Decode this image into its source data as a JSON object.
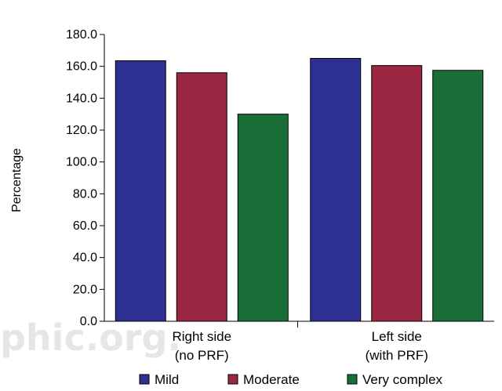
{
  "watermark": "phic.org.",
  "chart_data": {
    "type": "bar",
    "ylabel": "Percentage",
    "ylim": [
      0,
      180
    ],
    "yticks": [
      "0.0",
      "20.0",
      "40.0",
      "60.0",
      "80.0",
      "100.0",
      "120.0",
      "140.0",
      "160.0",
      "180.0"
    ],
    "categories": [
      {
        "line1": "Right side",
        "line2": "(no PRF)"
      },
      {
        "line1": "Left side",
        "line2": "(with PRF)"
      }
    ],
    "series": [
      {
        "name": "Mild",
        "color": "#2e3192",
        "values": [
          163.5,
          165.0
        ]
      },
      {
        "name": "Moderate",
        "color": "#9b2743",
        "values": [
          156.0,
          160.5
        ]
      },
      {
        "name": "Very complex",
        "color": "#1a6e38",
        "values": [
          130.0,
          157.5
        ]
      }
    ],
    "legend_position": "bottom",
    "grid": false
  }
}
